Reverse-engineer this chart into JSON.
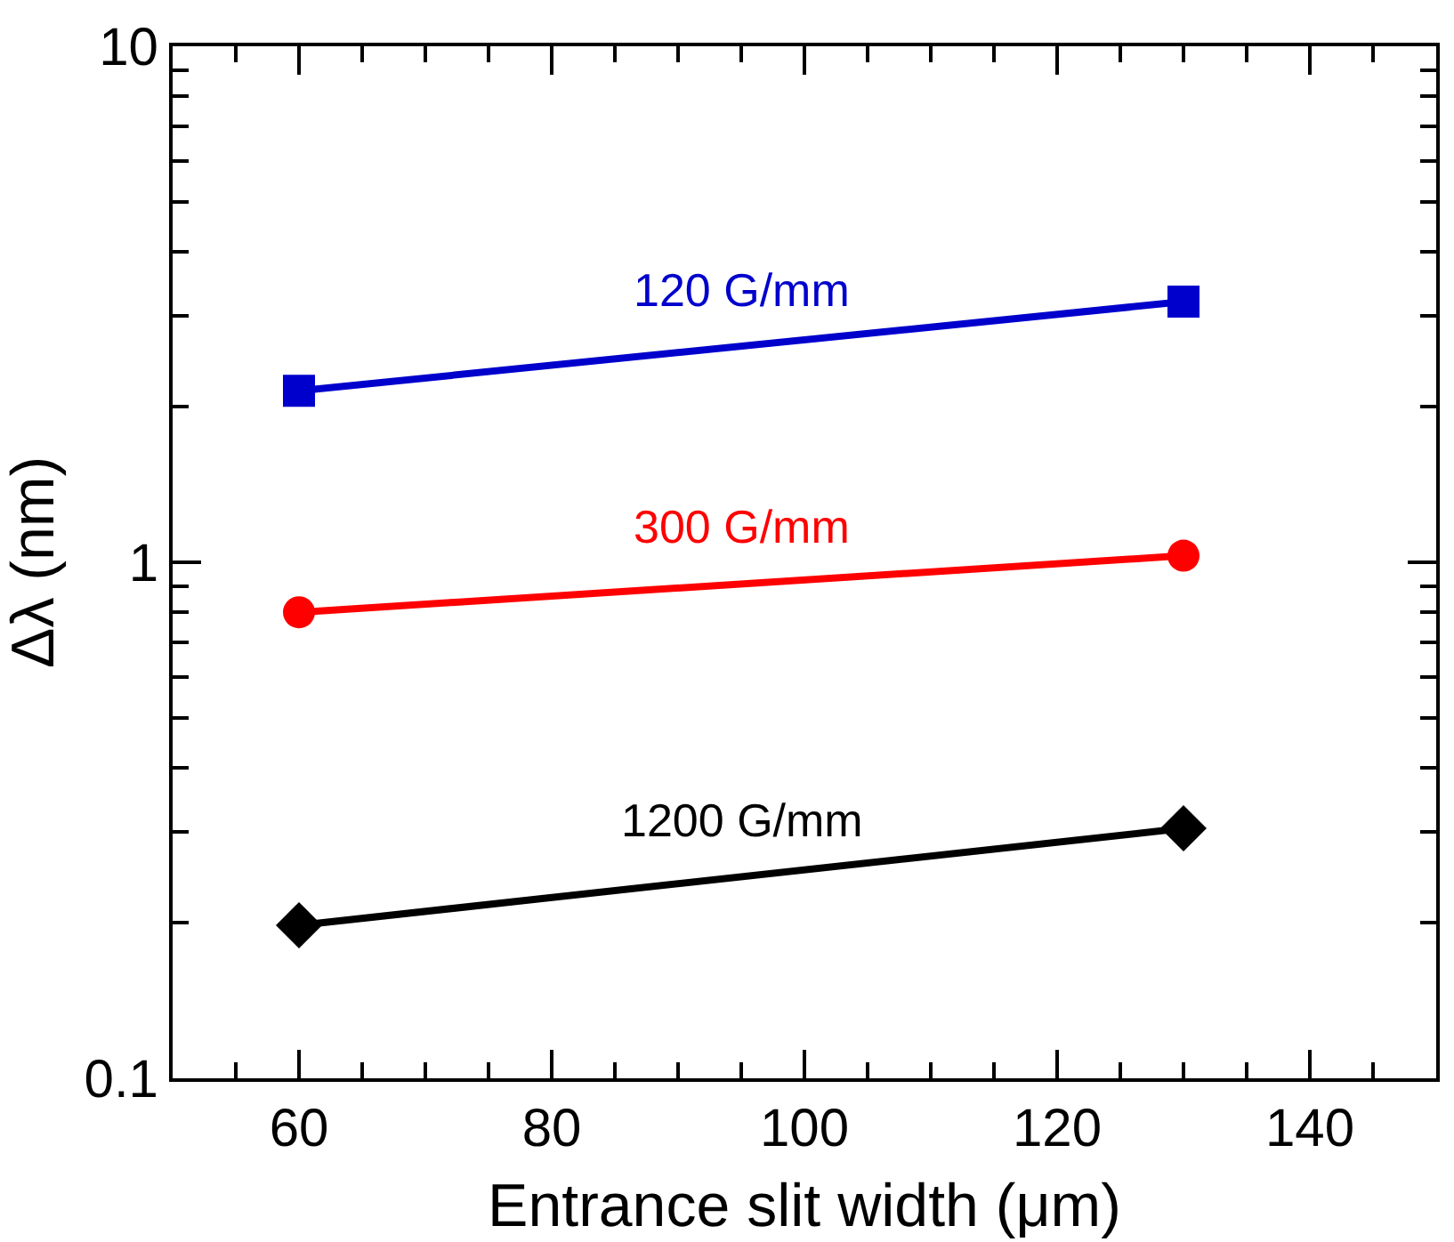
{
  "chart_data": {
    "type": "line",
    "xlabel": "Entrance slit width (μm)",
    "ylabel": "Δλ (nm)",
    "log": "y",
    "legend": false,
    "x": [
      60,
      130
    ],
    "series": [
      {
        "name": "120 G/mm",
        "color": "#0000cc",
        "marker": "square",
        "values": [
          2.15,
          3.2
        ]
      },
      {
        "name": "300 G/mm",
        "color": "#ff0000",
        "marker": "circle",
        "values": [
          0.8,
          1.03
        ]
      },
      {
        "name": "1200 G/mm",
        "color": "#000000",
        "marker": "diamond",
        "values": [
          0.198,
          0.305
        ]
      }
    ],
    "xlim": [
      50,
      150
    ],
    "xticks": [
      {
        "value": 55,
        "label": null
      },
      60,
      {
        "value": 65,
        "label": null
      },
      {
        "value": 70,
        "label": null
      },
      {
        "value": 75,
        "label": null
      },
      80,
      {
        "value": 85,
        "label": null
      },
      {
        "value": 90,
        "label": null
      },
      {
        "value": 95,
        "label": null
      },
      100,
      {
        "value": 105,
        "label": null
      },
      {
        "value": 110,
        "label": null
      },
      {
        "value": 115,
        "label": null
      },
      120,
      {
        "value": 125,
        "label": null
      },
      {
        "value": 130,
        "label": null
      },
      {
        "value": 135,
        "label": null
      },
      140,
      {
        "value": 145,
        "label": null
      }
    ],
    "ylim": [
      0.1,
      10
    ],
    "yticks": [
      0.1,
      {
        "value": 0.2,
        "label": null
      },
      {
        "value": 0.3,
        "label": null
      },
      {
        "value": 0.4,
        "label": null
      },
      {
        "value": 0.5,
        "label": null
      },
      {
        "value": 0.6,
        "label": null
      },
      {
        "value": 0.7,
        "label": null
      },
      {
        "value": 0.8,
        "label": null
      },
      {
        "value": 0.9,
        "label": null
      },
      1,
      {
        "value": 2,
        "label": null
      },
      {
        "value": 3,
        "label": null
      },
      {
        "value": 4,
        "label": null
      },
      {
        "value": 5,
        "label": null
      },
      {
        "value": 6,
        "label": null
      },
      {
        "value": 7,
        "label": null
      },
      {
        "value": 8,
        "label": null
      },
      {
        "value": 9,
        "label": null
      },
      10
    ]
  }
}
